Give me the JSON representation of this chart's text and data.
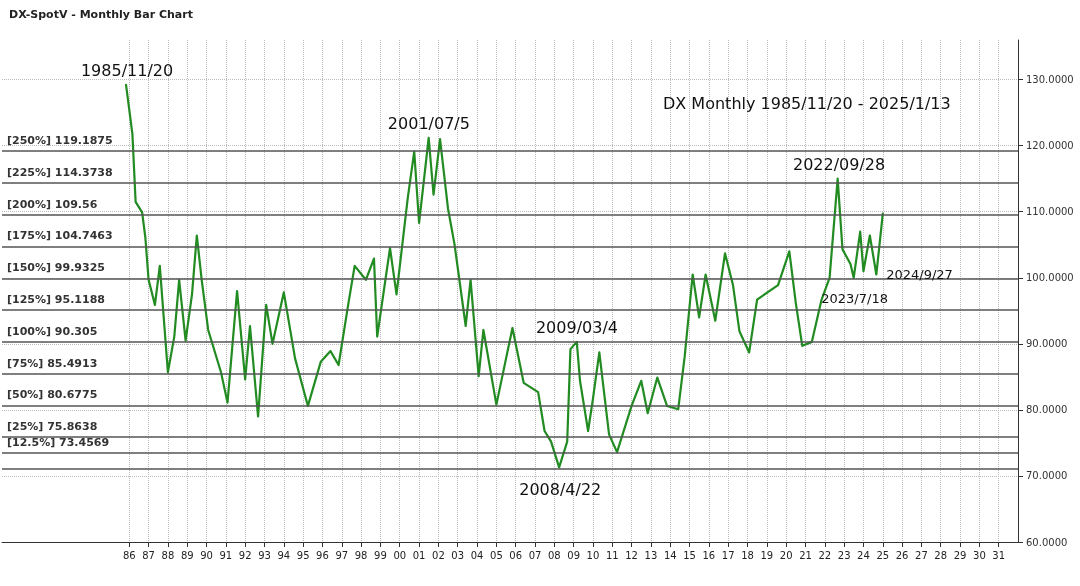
{
  "chart_data": {
    "type": "line",
    "title": "DX-SpotV - Monthly Bar Chart",
    "subtitle": "DX Monthly 1985/11/20 - 2025/1/13",
    "x": [
      "1985-11",
      "1986-03",
      "1986-05",
      "1986-09",
      "1986-11",
      "1987-01",
      "1987-05",
      "1987-08",
      "1988-01",
      "1988-05",
      "1988-08",
      "1988-12",
      "1989-04",
      "1989-07",
      "1989-10",
      "1990-02",
      "1990-10",
      "1991-02",
      "1991-08",
      "1992-01",
      "1992-04",
      "1992-09",
      "1993-02",
      "1993-06",
      "1994-01",
      "1994-08",
      "1995-04",
      "1995-12",
      "1996-06",
      "1996-11",
      "1997-05",
      "1997-09",
      "1998-04",
      "1998-09",
      "1998-11",
      "1999-07",
      "1999-11",
      "2000-06",
      "2000-10",
      "2001-01",
      "2001-07",
      "2001-10",
      "2002-02",
      "2002-07",
      "2002-11",
      "2003-06",
      "2003-09",
      "2004-02",
      "2004-05",
      "2005-01",
      "2005-11",
      "2006-06",
      "2007-01",
      "2007-03",
      "2007-07",
      "2007-11",
      "2008-04",
      "2008-09",
      "2008-11",
      "2009-03",
      "2009-05",
      "2009-10",
      "2010-01",
      "2010-05",
      "2010-11",
      "2011-04",
      "2012-01",
      "2012-07",
      "2012-11",
      "2013-05",
      "2013-11",
      "2014-06",
      "2014-10",
      "2015-03",
      "2015-07",
      "2015-11",
      "2016-05",
      "2016-11",
      "2017-04",
      "2017-08",
      "2018-02",
      "2018-07",
      "2019-08",
      "2020-03",
      "2020-07",
      "2020-11",
      "2021-05",
      "2021-11",
      "2022-04",
      "2022-09",
      "2022-12",
      "2023-05",
      "2023-07",
      "2023-11",
      "2024-01",
      "2024-05",
      "2024-09",
      "2025-01"
    ],
    "series": [
      {
        "color": "#228b22",
        "values": [
          129.2,
          121.8,
          111.5,
          109.9,
          106.1,
          99.7,
          95.9,
          101.8,
          85.7,
          91.1,
          99.7,
          90.5,
          97.5,
          106.4,
          99.7,
          92.1,
          85.7,
          81.1,
          98.0,
          84.6,
          92.7,
          79.0,
          95.9,
          90.0,
          97.8,
          87.8,
          80.6,
          87.3,
          88.9,
          86.8,
          95.9,
          101.8,
          99.7,
          102.9,
          91.1,
          104.5,
          97.5,
          112.1,
          119.1,
          108.3,
          121.2,
          112.6,
          121.0,
          110.5,
          105.1,
          92.7,
          99.7,
          85.1,
          92.1,
          80.8,
          92.4,
          84.1,
          83.0,
          82.7,
          76.8,
          75.2,
          71.3,
          75.2,
          89.2,
          90.3,
          84.4,
          76.8,
          81.7,
          88.7,
          76.3,
          73.6,
          80.6,
          84.4,
          79.5,
          84.9,
          80.6,
          80.1,
          88.1,
          100.5,
          94.0,
          100.5,
          93.5,
          103.7,
          98.9,
          91.9,
          88.7,
          96.7,
          98.9,
          104.0,
          96.2,
          89.7,
          90.3,
          96.7,
          100.0,
          115.0,
          104.3,
          102.1,
          100.0,
          107.0,
          101.0,
          106.4,
          100.5,
          109.7
        ]
      }
    ],
    "xlim": [
      "1979-06",
      "2032-01"
    ],
    "xticks": [
      {
        "value": "1986",
        "label": "86"
      },
      {
        "value": "1987",
        "label": "87"
      },
      {
        "value": "1988",
        "label": "88"
      },
      {
        "value": "1989",
        "label": "89"
      },
      {
        "value": "1990",
        "label": "90"
      },
      {
        "value": "1991",
        "label": "91"
      },
      {
        "value": "1992",
        "label": "92"
      },
      {
        "value": "1993",
        "label": "93"
      },
      {
        "value": "1994",
        "label": "94"
      },
      {
        "value": "1995",
        "label": "95"
      },
      {
        "value": "1996",
        "label": "96"
      },
      {
        "value": "1997",
        "label": "97"
      },
      {
        "value": "1998",
        "label": "98"
      },
      {
        "value": "1999",
        "label": "99"
      },
      {
        "value": "2000",
        "label": "00"
      },
      {
        "value": "2001",
        "label": "01"
      },
      {
        "value": "2002",
        "label": "02"
      },
      {
        "value": "2003",
        "label": "03"
      },
      {
        "value": "2004",
        "label": "04"
      },
      {
        "value": "2005",
        "label": "05"
      },
      {
        "value": "2006",
        "label": "06"
      },
      {
        "value": "2007",
        "label": "07"
      },
      {
        "value": "2008",
        "label": "08"
      },
      {
        "value": "2009",
        "label": "09"
      },
      {
        "value": "2010",
        "label": "10"
      },
      {
        "value": "2011",
        "label": "11"
      },
      {
        "value": "2012",
        "label": "12"
      },
      {
        "value": "2013",
        "label": "13"
      },
      {
        "value": "2014",
        "label": "14"
      },
      {
        "value": "2015",
        "label": "15"
      },
      {
        "value": "2016",
        "label": "16"
      },
      {
        "value": "2017",
        "label": "17"
      },
      {
        "value": "2018",
        "label": "18"
      },
      {
        "value": "2019",
        "label": "19"
      },
      {
        "value": "2020",
        "label": "20"
      },
      {
        "value": "2021",
        "label": "21"
      },
      {
        "value": "2022",
        "label": "22"
      },
      {
        "value": "2023",
        "label": "23"
      },
      {
        "value": "2024",
        "label": "24"
      },
      {
        "value": "2025",
        "label": "25"
      },
      {
        "value": "2026",
        "label": "26"
      },
      {
        "value": "2027",
        "label": "27"
      },
      {
        "value": "2028",
        "label": "28"
      },
      {
        "value": "2029",
        "label": "29"
      },
      {
        "value": "2030",
        "label": "30"
      },
      {
        "value": "2031",
        "label": "31"
      }
    ],
    "ylim": [
      60,
      136
    ],
    "yticks": [
      {
        "value": 60,
        "label": "60.0000"
      },
      {
        "value": 70,
        "label": "70.0000"
      },
      {
        "value": 80,
        "label": "80.0000"
      },
      {
        "value": 90,
        "label": "90.0000"
      },
      {
        "value": 100,
        "label": "100.0000"
      },
      {
        "value": 110,
        "label": "110.0000"
      },
      {
        "value": 120,
        "label": "120.0000"
      },
      {
        "value": 130,
        "label": "130.0000"
      }
    ],
    "grid": true,
    "marker": "none",
    "line_style": "solid",
    "ref_lines": [
      {
        "axis": "y",
        "value": 119.1875,
        "label": "[250%] 119.1875",
        "color": "#555555"
      },
      {
        "axis": "y",
        "value": 114.3738,
        "label": "[225%] 114.3738",
        "color": "#555555"
      },
      {
        "axis": "y",
        "value": 109.56,
        "label": "[200%] 109.56",
        "color": "#555555"
      },
      {
        "axis": "y",
        "value": 104.7463,
        "label": "[175%] 104.7463",
        "color": "#555555"
      },
      {
        "axis": "y",
        "value": 99.9325,
        "label": "[150%] 99.9325",
        "color": "#555555"
      },
      {
        "axis": "y",
        "value": 95.1188,
        "label": "[125%] 95.1188",
        "color": "#555555"
      },
      {
        "axis": "y",
        "value": 90.305,
        "label": "[100%] 90.305",
        "color": "#555555"
      },
      {
        "axis": "y",
        "value": 85.4913,
        "label": "[75%] 85.4913",
        "color": "#555555"
      },
      {
        "axis": "y",
        "value": 80.6775,
        "label": "[50%] 80.6775",
        "color": "#555555"
      },
      {
        "axis": "y",
        "value": 75.8638,
        "label": "[25%] 75.8638",
        "color": "#555555"
      },
      {
        "axis": "y",
        "value": 73.4569,
        "label": "[12.5%] 73.4569",
        "color": "#555555"
      },
      {
        "axis": "y",
        "value": 71.05,
        "color": "#555555"
      }
    ],
    "annotations": [
      {
        "text": "1985/11/20",
        "x": "1985-11-20",
        "y": 129.2
      },
      {
        "text": "2001/07/5",
        "x": "2001-07-05",
        "y": 121.2
      },
      {
        "text": "2009/03/4",
        "x": "2009-03-04",
        "y": 90.3
      },
      {
        "text": "2008/4/22",
        "x": "2008-04-22",
        "y": 71.3
      },
      {
        "text": "2022/09/28",
        "x": "2022-09-28",
        "y": 115.0
      },
      {
        "text": "2023/7/18",
        "x": "2023-07-18",
        "y": 100.0
      },
      {
        "text": "2024/9/27",
        "x": "2024-09-27",
        "y": 100.5
      }
    ]
  }
}
